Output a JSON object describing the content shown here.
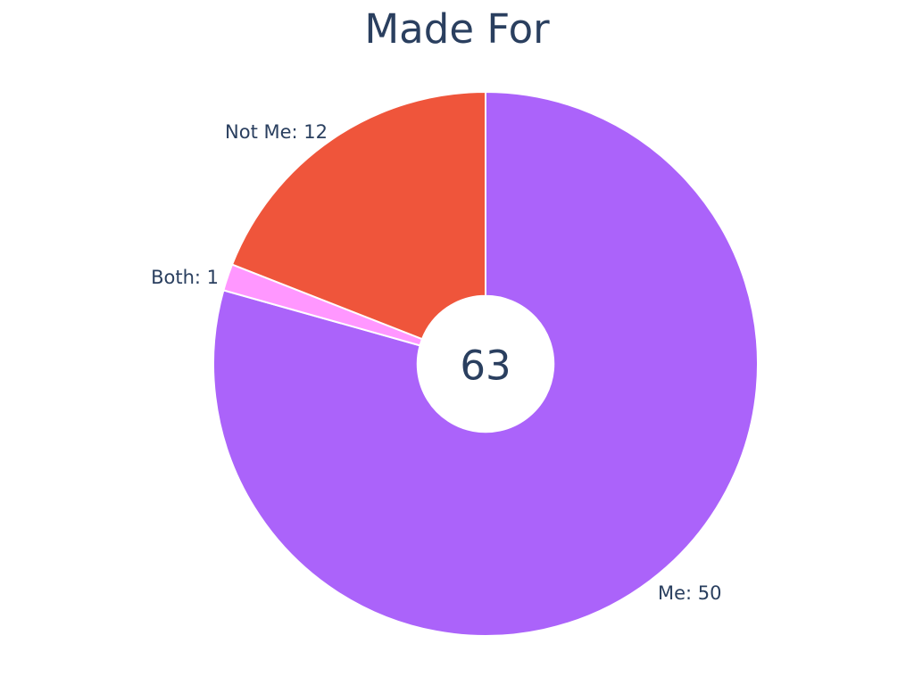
{
  "chart_data": {
    "type": "pie",
    "title": "Made For",
    "categories": [
      "Me",
      "Both",
      "Not Me"
    ],
    "values": [
      50,
      1,
      12
    ],
    "total": 63,
    "total_label": "63",
    "hole_fraction": 0.25,
    "start_angle_deg": 0,
    "direction": "clockwise",
    "background_color": "#ffffff",
    "text_color": "#2a3f5f",
    "slice_border_color": "#ffffff",
    "slices": [
      {
        "label": "Me",
        "value": 50,
        "color": "#AB63FA",
        "display": "Me: 50"
      },
      {
        "label": "Both",
        "value": 1,
        "color": "#FF97FF",
        "display": "Both: 1"
      },
      {
        "label": "Not Me",
        "value": 12,
        "color": "#EF553B",
        "display": "Not Me: 12"
      }
    ],
    "legend": "none",
    "labels_position": "outside"
  }
}
